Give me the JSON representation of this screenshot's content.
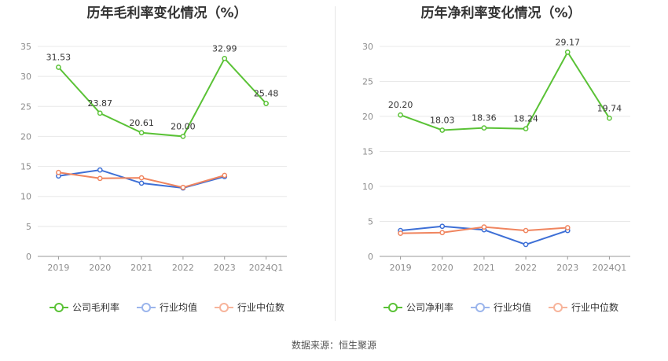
{
  "chart_data": [
    {
      "type": "line",
      "title": "历年毛利率变化情况（%）",
      "categories": [
        "2019",
        "2020",
        "2021",
        "2022",
        "2023",
        "2024Q1"
      ],
      "ylim": [
        0,
        35
      ],
      "yticks": [
        0,
        5,
        10,
        15,
        20,
        25,
        30,
        35
      ],
      "grid": true,
      "legend_position": "bottom",
      "series": [
        {
          "name": "公司毛利率",
          "color": "#5ac236",
          "values": [
            31.53,
            23.87,
            20.61,
            20.0,
            32.99,
            25.48
          ],
          "labels": [
            "31.53",
            "23.87",
            "20.61",
            "20.00",
            "32.99",
            "25.48"
          ]
        },
        {
          "name": "行业均值",
          "color": "#3d6fd6",
          "values": [
            13.4,
            14.4,
            12.2,
            11.4,
            13.3,
            null
          ]
        },
        {
          "name": "行业中位数",
          "color": "#f0855f",
          "values": [
            14.0,
            13.0,
            13.1,
            11.5,
            13.5,
            null
          ]
        }
      ]
    },
    {
      "type": "line",
      "title": "历年净利率变化情况（%）",
      "categories": [
        "2019",
        "2020",
        "2021",
        "2022",
        "2023",
        "2024Q1"
      ],
      "ylim": [
        0,
        30
      ],
      "yticks": [
        0,
        5,
        10,
        15,
        20,
        25,
        30
      ],
      "grid": true,
      "legend_position": "bottom",
      "series": [
        {
          "name": "公司净利率",
          "color": "#5ac236",
          "values": [
            20.2,
            18.03,
            18.36,
            18.24,
            29.17,
            19.74
          ],
          "labels": [
            "20.20",
            "18.03",
            "18.36",
            "18.24",
            "29.17",
            "19.74"
          ]
        },
        {
          "name": "行业均值",
          "color": "#3d6fd6",
          "values": [
            3.7,
            4.3,
            3.8,
            1.7,
            3.7,
            null
          ]
        },
        {
          "name": "行业中位数",
          "color": "#f0855f",
          "values": [
            3.3,
            3.4,
            4.2,
            3.7,
            4.1,
            null
          ]
        }
      ]
    }
  ],
  "legend_colors": {
    "company": "#5ac236",
    "industry_mean": "#9bb5ec",
    "industry_median": "#f7b49b"
  },
  "source": "数据来源：恒生聚源"
}
